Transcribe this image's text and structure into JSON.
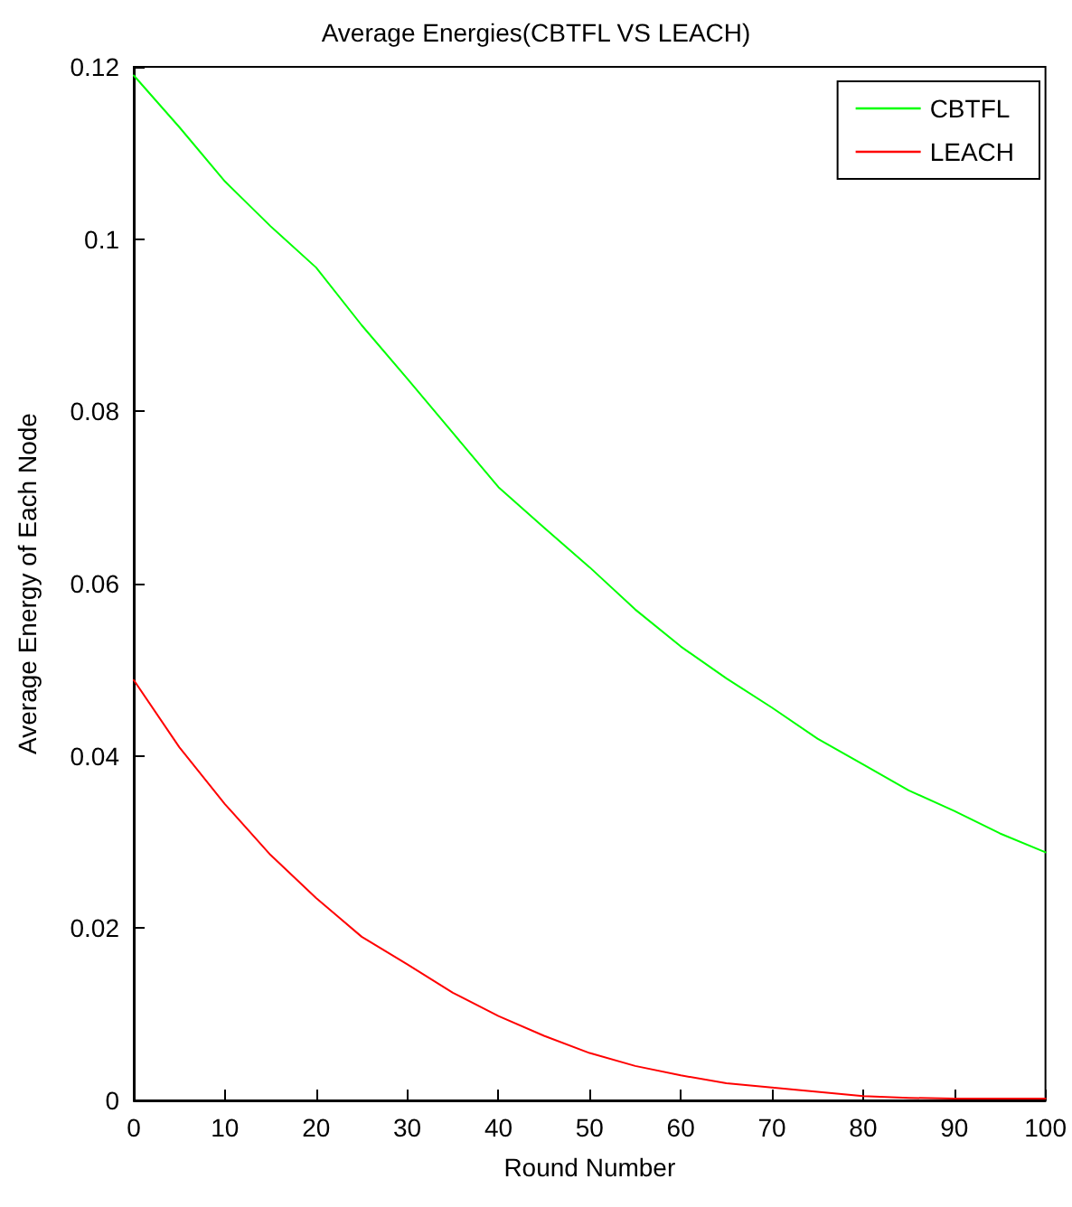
{
  "chart_data": {
    "type": "line",
    "title": "Average Energies(CBTFL VS LEACH)",
    "xlabel": "Round Number",
    "ylabel": "Average Energy of Each Node",
    "x": [
      0,
      5,
      10,
      15,
      20,
      25,
      30,
      35,
      40,
      45,
      50,
      55,
      60,
      65,
      70,
      75,
      80,
      85,
      90,
      95,
      100
    ],
    "series": [
      {
        "name": "CBTFL",
        "color": "#00ff00",
        "values": [
          0.119,
          0.113,
          0.1067,
          0.1015,
          0.0967,
          0.09,
          0.0838,
          0.0775,
          0.0712,
          0.0665,
          0.0619,
          0.057,
          0.0527,
          0.049,
          0.0456,
          0.042,
          0.039,
          0.036,
          0.0336,
          0.031,
          0.0288
        ]
      },
      {
        "name": "LEACH",
        "color": "#ff0000",
        "values": [
          0.0488,
          0.041,
          0.0344,
          0.0285,
          0.0235,
          0.019,
          0.0158,
          0.0125,
          0.0098,
          0.0075,
          0.0055,
          0.004,
          0.0029,
          0.002,
          0.0015,
          0.001,
          0.0005,
          0.0003,
          0.0002,
          0.0002,
          0.0002
        ]
      }
    ],
    "xlim": [
      0,
      100
    ],
    "xticks": [
      0,
      10,
      20,
      30,
      40,
      50,
      60,
      70,
      80,
      90,
      100
    ],
    "ylim": [
      0,
      0.12
    ],
    "yticks": [
      0,
      0.02,
      0.04,
      0.06,
      0.08,
      0.1,
      0.12
    ],
    "grid": false,
    "legend": "top right",
    "marker": "none",
    "line_style": "solid"
  }
}
